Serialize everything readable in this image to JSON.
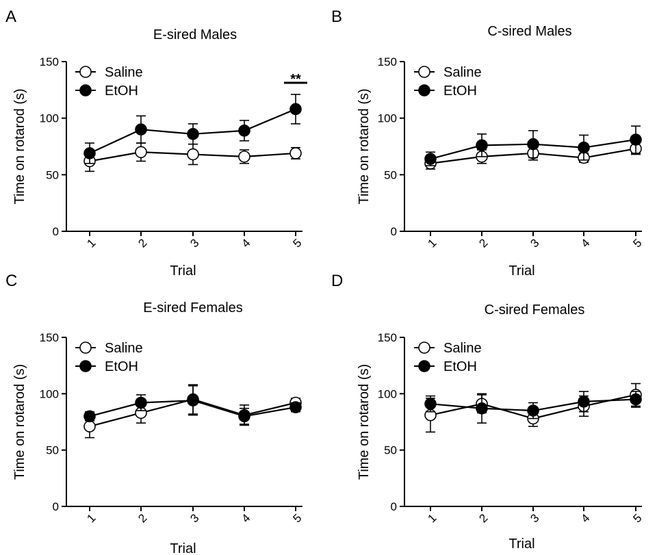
{
  "figure": {
    "background": "#ffffff",
    "marker_colors": {
      "Saline": "#ffffff",
      "EtOH": "#000000"
    },
    "line_color": "#000000"
  },
  "chart_data": [
    {
      "panel": "A",
      "type": "line",
      "title": "E-sired Males",
      "xlabel": "Trial",
      "ylabel": "Time on rotarod (s)",
      "categories": [
        "1",
        "2",
        "3",
        "4",
        "5"
      ],
      "ylim": [
        0,
        150
      ],
      "yticks": [
        "0",
        "50",
        "100",
        "150"
      ],
      "grid": false,
      "legend_position": "top-left",
      "series": [
        {
          "name": "Saline",
          "marker": "open-circle",
          "values": [
            62,
            70,
            68,
            66,
            69
          ],
          "errors": [
            9,
            8,
            9,
            6,
            5
          ]
        },
        {
          "name": "EtOH",
          "marker": "filled-circle",
          "values": [
            69,
            90,
            86,
            89,
            108
          ],
          "errors": [
            9,
            12,
            9,
            9,
            13
          ]
        }
      ],
      "annotations": [
        {
          "text": "**",
          "category": "5"
        }
      ]
    },
    {
      "panel": "B",
      "type": "line",
      "title": "C-sired Males",
      "xlabel": "Trial",
      "ylabel": "Time on rotarod (s)",
      "categories": [
        "1",
        "2",
        "3",
        "4",
        "5"
      ],
      "ylim": [
        0,
        150
      ],
      "yticks": [
        "0",
        "50",
        "100",
        "150"
      ],
      "grid": false,
      "legend_position": "top-left",
      "series": [
        {
          "name": "Saline",
          "marker": "open-circle",
          "values": [
            60,
            66,
            69,
            65,
            73
          ],
          "errors": [
            5,
            6,
            6,
            4,
            5
          ]
        },
        {
          "name": "EtOH",
          "marker": "filled-circle",
          "values": [
            64,
            76,
            77,
            74,
            81
          ],
          "errors": [
            6,
            10,
            12,
            11,
            12
          ]
        }
      ],
      "annotations": []
    },
    {
      "panel": "C",
      "type": "line",
      "title": "E-sired Females",
      "xlabel": "Trial",
      "ylabel": "Time on rotarod  (s)",
      "categories": [
        "1",
        "2",
        "3",
        "4",
        "5"
      ],
      "ylim": [
        0,
        150
      ],
      "yticks": [
        "0",
        "50",
        "100",
        "150"
      ],
      "grid": false,
      "legend_position": "top-left",
      "series": [
        {
          "name": "Saline",
          "marker": "open-circle",
          "values": [
            71,
            83,
            95,
            81,
            92
          ],
          "errors": [
            10,
            9,
            13,
            9,
            4
          ]
        },
        {
          "name": "EtOH",
          "marker": "filled-circle",
          "values": [
            80,
            92,
            94,
            80,
            88
          ],
          "errors": [
            4,
            7,
            13,
            7,
            4
          ]
        }
      ],
      "annotations": []
    },
    {
      "panel": "D",
      "type": "line",
      "title": "C-sired  Females",
      "xlabel": "Trial",
      "ylabel": "Time on rotarod (s)",
      "categories": [
        "1",
        "2",
        "3",
        "4",
        "5"
      ],
      "ylim": [
        0,
        150
      ],
      "yticks": [
        "0",
        "50",
        "100",
        "150"
      ],
      "grid": false,
      "legend_position": "top-left",
      "series": [
        {
          "name": "Saline",
          "marker": "open-circle",
          "values": [
            81,
            91,
            78,
            89,
            99
          ],
          "errors": [
            15,
            8,
            7,
            9,
            10
          ]
        },
        {
          "name": "EtOH",
          "marker": "filled-circle",
          "values": [
            91,
            87,
            85,
            93,
            95
          ],
          "errors": [
            7,
            13,
            7,
            9,
            7
          ]
        }
      ],
      "annotations": []
    }
  ]
}
